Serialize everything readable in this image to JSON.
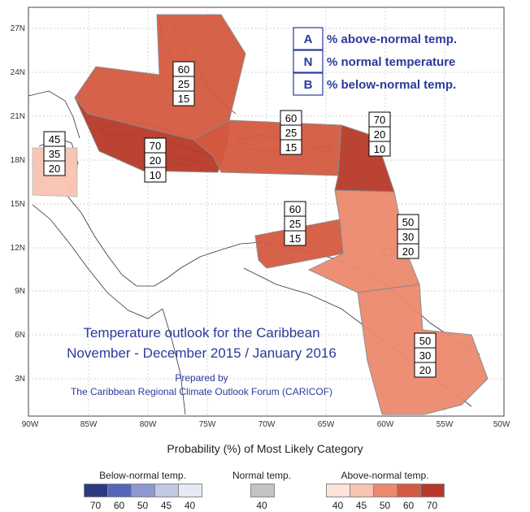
{
  "map": {
    "lat_labels": [
      "3N",
      "6N",
      "9N",
      "12N",
      "15N",
      "18N",
      "21N",
      "24N",
      "27N"
    ],
    "lon_labels": [
      "90W",
      "85W",
      "80W",
      "75W",
      "70W",
      "65W",
      "60W",
      "55W",
      "50W"
    ],
    "zones": [
      {
        "name": "zone-bahamas",
        "color": "#d45a40",
        "values": [
          "60",
          "25",
          "15"
        ]
      },
      {
        "name": "zone-cuba-cayman",
        "color": "#b8392a",
        "values": [
          "70",
          "20",
          "10"
        ]
      },
      {
        "name": "zone-hispaniola",
        "color": "#d45a40",
        "values": [
          "60",
          "25",
          "15"
        ]
      },
      {
        "name": "zone-leeward",
        "color": "#b8392a",
        "values": [
          "70",
          "20",
          "10"
        ]
      },
      {
        "name": "zone-abc-islands",
        "color": "#d45a40",
        "values": [
          "60",
          "25",
          "15"
        ]
      },
      {
        "name": "zone-windward",
        "color": "#eb8a6e",
        "values": [
          "50",
          "30",
          "20"
        ]
      },
      {
        "name": "zone-guianas",
        "color": "#eb8a6e",
        "values": [
          "50",
          "30",
          "20"
        ]
      },
      {
        "name": "zone-belize",
        "color": "#f9c4b2",
        "values": [
          "45",
          "35",
          "20"
        ]
      }
    ]
  },
  "legend_key": [
    {
      "letter": "A",
      "text": "% above-normal temp."
    },
    {
      "letter": "N",
      "text": "% normal temperature"
    },
    {
      "letter": "B",
      "text": "% below-normal temp."
    }
  ],
  "title": {
    "line1": "Temperature outlook for the Caribbean",
    "line2": "November - December 2015 / January 2016",
    "prepared_by": "Prepared by",
    "forum": "The Caribbean Regional Climate Outlook Forum (CARICOF)"
  },
  "scale": {
    "title": "Probability (%) of Most Likely Category",
    "below": {
      "label": "Below-normal temp.",
      "colors": [
        "#2e3a80",
        "#5566b8",
        "#8e98cf",
        "#c2c8e6",
        "#e6eaf6"
      ],
      "ticks": [
        "70",
        "60",
        "50",
        "45",
        "40"
      ]
    },
    "normal": {
      "label": "Normal temp.",
      "colors": [
        "#c4c4c4"
      ],
      "ticks": [
        "40"
      ]
    },
    "above": {
      "label": "Above-normal temp.",
      "colors": [
        "#fde4da",
        "#f9c4b2",
        "#eb8a6e",
        "#d45a40",
        "#b8392a"
      ],
      "ticks": [
        "40",
        "45",
        "50",
        "60",
        "70"
      ]
    }
  }
}
